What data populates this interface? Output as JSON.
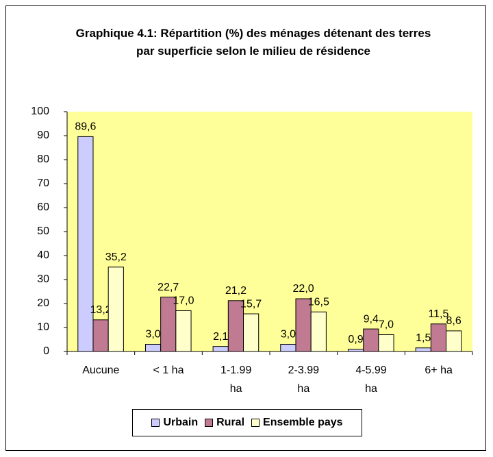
{
  "chart_data": {
    "type": "bar",
    "title": "Graphique 4.1: Répartition (%) des ménages détenant des terres par superficie selon le milieu de résidence",
    "categories": [
      "Aucune",
      "< 1 ha",
      "1-1.99 ha",
      "2-3.99 ha",
      "4-5.99 ha",
      "6+ ha"
    ],
    "series": [
      {
        "name": "Urbain",
        "color": "#ccccff",
        "values": [
          89.6,
          3.0,
          2.1,
          3.0,
          0.9,
          1.5
        ],
        "value_labels": [
          "89,6",
          "3,0",
          "2,1",
          "3,0",
          "0,9",
          "1,5"
        ]
      },
      {
        "name": "Rural",
        "color": "#c07a92",
        "values": [
          13.2,
          22.7,
          21.2,
          22.0,
          9.4,
          11.5
        ],
        "value_labels": [
          "13,2",
          "22,7",
          "21,2",
          "22,0",
          "9,4",
          "11,5"
        ]
      },
      {
        "name": "Ensemble pays",
        "color": "#ffffcc",
        "values": [
          35.2,
          17.0,
          15.7,
          16.5,
          7.0,
          8.6
        ],
        "value_labels": [
          "35,2",
          "17,0",
          "15,7",
          "16,5",
          "7,0",
          "8,6"
        ]
      }
    ],
    "ylim": [
      0,
      100
    ],
    "yticks": [
      0,
      10,
      20,
      30,
      40,
      50,
      60,
      70,
      80,
      90,
      100
    ],
    "plot_background": "#ffff99",
    "legend": "bottom"
  }
}
